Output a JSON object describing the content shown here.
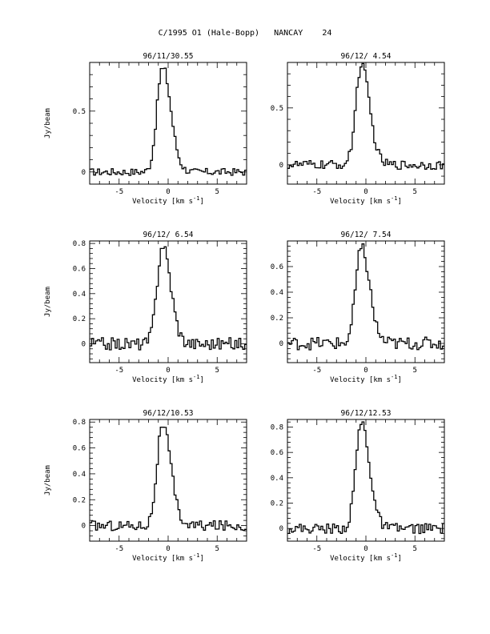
{
  "page_title": "C/1995 O1 (Hale-Bopp)   NANCAY    24",
  "chart_data": [
    {
      "type": "line",
      "title": "96/11/30.55",
      "xlabel": "Velocity [km s",
      "xlabel_sup": "-1",
      "xlabel_tail": "]",
      "ylabel": "Jy/beam",
      "xlim": [
        -8,
        8
      ],
      "ylim": [
        -0.1,
        0.9
      ],
      "xticks": [
        -5,
        0,
        5
      ],
      "yticks": [
        0,
        0.5
      ],
      "ytick_labels": [
        "0",
        "0.5"
      ],
      "peak_velocity": -0.6,
      "peak": 0.85,
      "noise": 0.03
    },
    {
      "type": "line",
      "title": "96/12/ 4.54",
      "xlabel": "Velocity [km s",
      "xlabel_sup": "-1",
      "xlabel_tail": "]",
      "ylabel": "",
      "xlim": [
        -8,
        8
      ],
      "ylim": [
        -0.17,
        0.9
      ],
      "xticks": [
        -5,
        0,
        5
      ],
      "yticks": [
        0,
        0.5
      ],
      "ytick_labels": [
        "0",
        "0.5"
      ],
      "peak_velocity": -0.5,
      "peak": 0.86,
      "noise": 0.04
    },
    {
      "type": "line",
      "title": "96/12/ 6.54",
      "xlabel": "Velocity [km s",
      "xlabel_sup": "-1",
      "xlabel_tail": "]",
      "ylabel": "Jy/beam",
      "xlim": [
        -8,
        8
      ],
      "ylim": [
        -0.15,
        0.82
      ],
      "xticks": [
        -5,
        0,
        5
      ],
      "yticks": [
        0,
        0.2,
        0.4,
        0.6,
        0.8
      ],
      "ytick_labels": [
        "0",
        "0.2",
        "0.4",
        "0.6",
        "0.8"
      ],
      "peak_velocity": -0.6,
      "peak": 0.76,
      "noise": 0.05
    },
    {
      "type": "line",
      "title": "96/12/ 7.54",
      "xlabel": "Velocity [km s",
      "xlabel_sup": "-1",
      "xlabel_tail": "]",
      "ylabel": "",
      "xlim": [
        -8,
        8
      ],
      "ylim": [
        -0.15,
        0.8
      ],
      "xticks": [
        -5,
        0,
        5
      ],
      "yticks": [
        0,
        0.2,
        0.4,
        0.6
      ],
      "ytick_labels": [
        "0",
        "0.2",
        "0.4",
        "0.6"
      ],
      "peak_velocity": -0.5,
      "peak": 0.74,
      "noise": 0.05
    },
    {
      "type": "line",
      "title": "96/12/10.53",
      "xlabel": "Velocity [km s",
      "xlabel_sup": "-1",
      "xlabel_tail": "]",
      "ylabel": "Jy/beam",
      "xlim": [
        -8,
        8
      ],
      "ylim": [
        -0.12,
        0.82
      ],
      "xticks": [
        -5,
        0,
        5
      ],
      "yticks": [
        0,
        0.2,
        0.4,
        0.6,
        0.8
      ],
      "ytick_labels": [
        "0",
        "0.2",
        "0.4",
        "0.6",
        "0.8"
      ],
      "peak_velocity": -0.6,
      "peak": 0.76,
      "noise": 0.04
    },
    {
      "type": "line",
      "title": "96/12/12.53",
      "xlabel": "Velocity [km s",
      "xlabel_sup": "-1",
      "xlabel_tail": "]",
      "ylabel": "",
      "xlim": [
        -8,
        8
      ],
      "ylim": [
        -0.1,
        0.86
      ],
      "xticks": [
        -5,
        0,
        5
      ],
      "yticks": [
        0,
        0.2,
        0.4,
        0.6,
        0.8
      ],
      "ytick_labels": [
        "0",
        "0.2",
        "0.4",
        "0.6",
        "0.8"
      ],
      "peak_velocity": -0.5,
      "peak": 0.82,
      "noise": 0.04
    }
  ]
}
